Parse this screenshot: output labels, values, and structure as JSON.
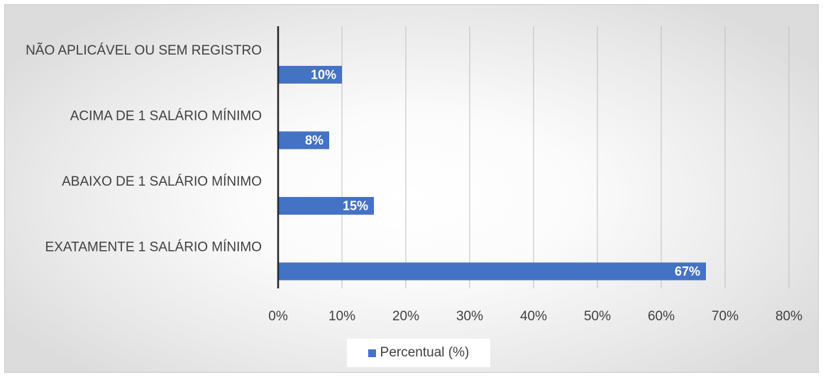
{
  "colors": {
    "bar": "#4472c4",
    "grid": "#bfbfbf",
    "axis": "#262626",
    "text": "#404040"
  },
  "chart_data": {
    "type": "bar",
    "orientation": "horizontal",
    "categories": [
      "NÃO APLICÁVEL OU SEM REGISTRO",
      "ACIMA DE 1 SALÁRIO MÍNIMO",
      "ABAIXO DE 1 SALÁRIO MÍNIMO",
      "EXATAMENTE 1 SALÁRIO MÍNIMO"
    ],
    "series": [
      {
        "name": "Percentual (%)",
        "values": [
          10,
          8,
          15,
          67
        ],
        "data_labels": [
          "10%",
          "8%",
          "15%",
          "67%"
        ]
      }
    ],
    "xlim": [
      0,
      80
    ],
    "xticks": [
      0,
      10,
      20,
      30,
      40,
      50,
      60,
      70,
      80
    ],
    "xtick_labels": [
      "0%",
      "10%",
      "20%",
      "30%",
      "40%",
      "50%",
      "60%",
      "70%",
      "80%"
    ],
    "grid": true,
    "legend_position": "bottom"
  }
}
